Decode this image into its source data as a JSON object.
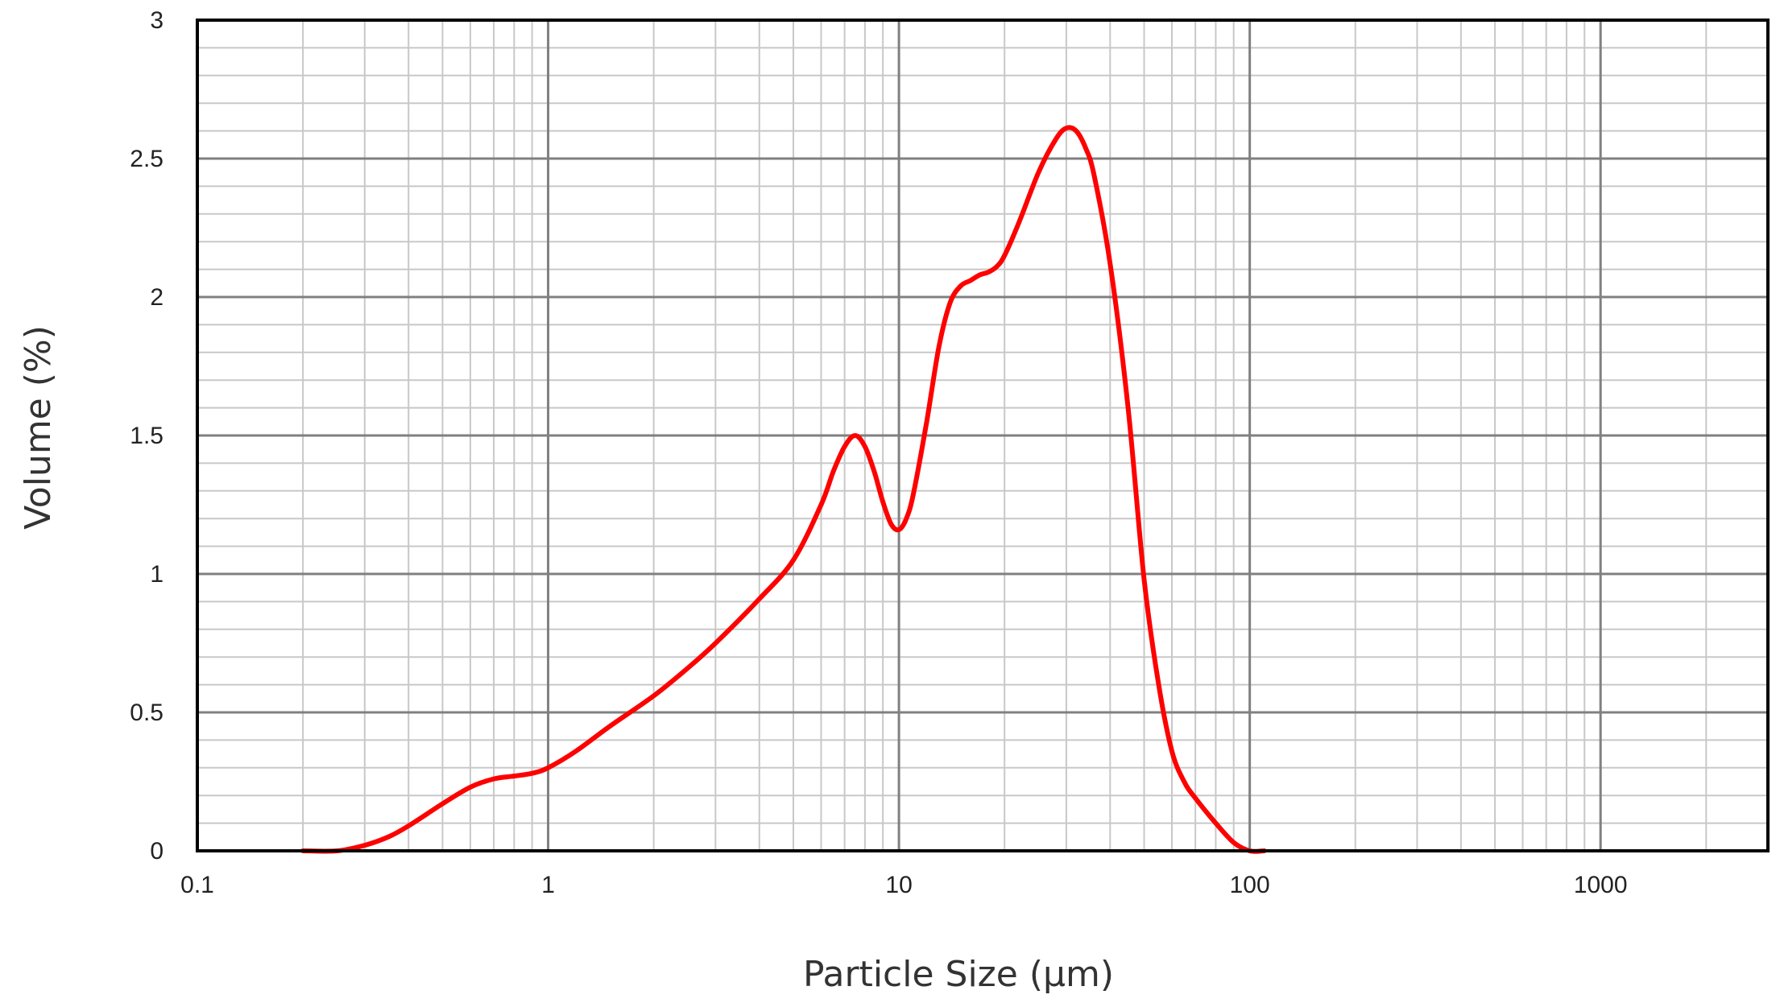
{
  "chart_data": {
    "type": "line",
    "title": "",
    "xlabel": "Particle Size (µm)",
    "ylabel": "Volume (%)",
    "x_scale": "log",
    "xlim": [
      0.1,
      3000
    ],
    "ylim": [
      0,
      3
    ],
    "grid": true,
    "legend": "none",
    "x_ticks": [
      "0.1",
      "1",
      "10",
      "100",
      "1000"
    ],
    "y_ticks": [
      "0",
      "0.5",
      "1",
      "1.5",
      "2",
      "2.5",
      "3"
    ],
    "series": [
      {
        "color": "#ff0000",
        "x": [
          0.2,
          0.25,
          0.3,
          0.35,
          0.4,
          0.5,
          0.6,
          0.7,
          0.8,
          0.9,
          1.0,
          1.2,
          1.5,
          2,
          2.5,
          3,
          4,
          5,
          6,
          6.5,
          7,
          7.5,
          8,
          8.5,
          9,
          9.5,
          10,
          10.5,
          11,
          12,
          13,
          14,
          15,
          16,
          17,
          18,
          19,
          20,
          22,
          25,
          28,
          30,
          32,
          34,
          36,
          40,
          45,
          50,
          55,
          60,
          65,
          70,
          80,
          90,
          100,
          110
        ],
        "y": [
          0.0,
          0.0,
          0.02,
          0.05,
          0.09,
          0.17,
          0.23,
          0.26,
          0.27,
          0.28,
          0.3,
          0.36,
          0.45,
          0.56,
          0.66,
          0.75,
          0.91,
          1.05,
          1.25,
          1.37,
          1.46,
          1.5,
          1.46,
          1.37,
          1.26,
          1.18,
          1.16,
          1.2,
          1.29,
          1.55,
          1.82,
          1.98,
          2.04,
          2.06,
          2.08,
          2.09,
          2.11,
          2.15,
          2.27,
          2.45,
          2.57,
          2.61,
          2.6,
          2.54,
          2.44,
          2.12,
          1.6,
          0.98,
          0.6,
          0.36,
          0.25,
          0.19,
          0.1,
          0.03,
          0.0,
          0.0
        ]
      }
    ]
  }
}
